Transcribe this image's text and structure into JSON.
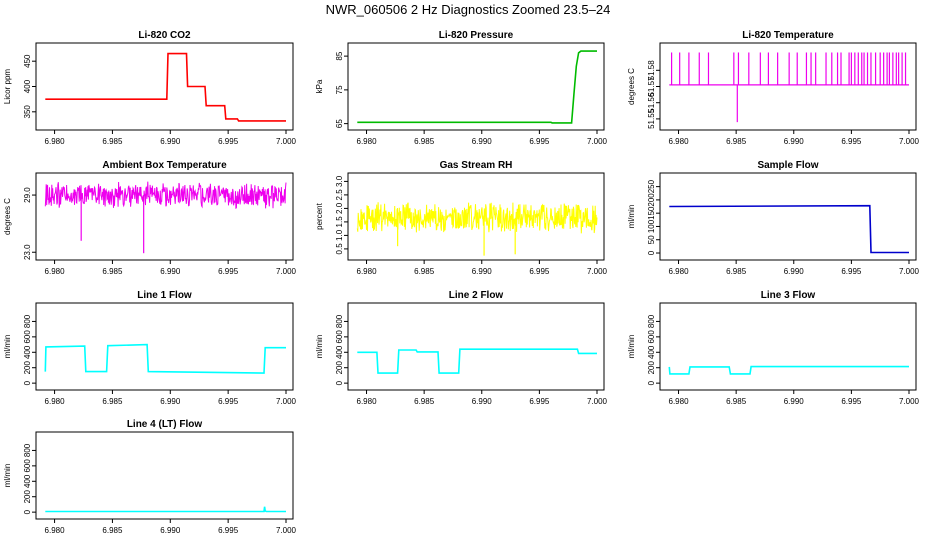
{
  "title": "NWR_060506  2 Hz Diagnostics Zoomed 23.5–24",
  "chart_data": [
    {
      "type": "line",
      "title": "Li-820 CO2",
      "ylabel": "Licor ppm",
      "color": "#ff0000",
      "xlim": [
        6.979,
        7.0
      ],
      "ylim": [
        320,
        480
      ],
      "xticks": [
        "6.980",
        "6.985",
        "6.990",
        "6.995",
        "7.000"
      ],
      "yticks": [
        "350",
        "400",
        "450"
      ],
      "x": [
        6.9792,
        6.9897,
        6.9898,
        6.9914,
        6.9915,
        6.993,
        6.9931,
        6.9947,
        6.9948,
        6.9958,
        6.9959,
        7.0
      ],
      "y": [
        375,
        375,
        465,
        465,
        400,
        400,
        362,
        362,
        336,
        336,
        332,
        332
      ]
    },
    {
      "type": "line",
      "title": "Li-820 Pressure",
      "ylabel": "kPa",
      "color": "#00bb00",
      "xlim": [
        6.979,
        7.0
      ],
      "ylim": [
        64,
        88
      ],
      "xticks": [
        "6.980",
        "6.985",
        "6.990",
        "6.995",
        "7.000"
      ],
      "yticks": [
        "65",
        "75",
        "85"
      ],
      "x": [
        6.9792,
        6.996,
        6.9961,
        6.9978,
        6.998,
        6.9982,
        6.9984,
        6.9986,
        7.0
      ],
      "y": [
        65.4,
        65.4,
        65.2,
        65.2,
        74,
        82,
        86,
        86.5,
        86.5
      ]
    },
    {
      "type": "spikes",
      "title": "Li-820 Temperature",
      "ylabel": "degrees C",
      "color": "#ee00ee",
      "xlim": [
        6.979,
        7.0
      ],
      "ylim": [
        51.545,
        51.595
      ],
      "xticks": [
        "6.980",
        "6.985",
        "6.990",
        "6.995",
        "7.000"
      ],
      "yticks": [
        "51.55",
        "51.56",
        "51.57",
        "51.58"
      ],
      "base": 51.571,
      "high": 51.591,
      "low": 51.548,
      "low_x": 6.9851,
      "spike_x": [
        6.9794,
        6.9801,
        6.9809,
        6.9818,
        6.9826,
        6.9848,
        6.9852,
        6.9861,
        6.9871,
        6.9878,
        6.9886,
        6.9896,
        6.9903,
        6.9911,
        6.9915,
        6.9919,
        6.9928,
        6.9933,
        6.9938,
        6.9941,
        6.9948,
        6.995,
        6.9953,
        6.9956,
        6.9959,
        6.9961,
        6.9964,
        6.9967,
        6.9971,
        6.9975,
        6.9978,
        6.9981,
        6.9983,
        6.9986,
        6.9989,
        6.9991,
        6.9994,
        6.9997
      ]
    },
    {
      "type": "noise",
      "title": "Ambient Box Temperature",
      "ylabel": "degrees C",
      "color": "#ee00ee",
      "xlim": [
        6.979,
        7.0
      ],
      "ylim": [
        22.5,
        31.0
      ],
      "xticks": [
        "6.980",
        "6.985",
        "6.990",
        "6.995",
        "7.000"
      ],
      "yticks": [
        "23.0",
        "29.0"
      ],
      "mean": 29.0,
      "amp": 1.1,
      "dip_x": [
        6.9823,
        6.9877
      ],
      "dip_y": [
        24.2,
        22.9
      ]
    },
    {
      "type": "noise",
      "title": "Gas Stream RH",
      "ylabel": "percent",
      "color": "#ffff00",
      "xlim": [
        6.979,
        7.0
      ],
      "ylim": [
        0.2,
        3.2
      ],
      "xticks": [
        "6.980",
        "6.985",
        "6.990",
        "6.995",
        "7.000"
      ],
      "yticks": [
        "0.5",
        "1.0",
        "1.5",
        "2.0",
        "2.5",
        "3.0"
      ],
      "mean": 1.65,
      "amp": 0.45,
      "dip_x": [
        6.9827,
        6.9902,
        6.9929
      ],
      "dip_y": [
        0.6,
        0.25,
        0.3
      ]
    },
    {
      "type": "line",
      "title": "Sample Flow",
      "ylabel": "ml/min",
      "color": "#0000cc",
      "xlim": [
        6.979,
        7.0
      ],
      "ylim": [
        -15,
        290
      ],
      "xticks": [
        "6.980",
        "6.985",
        "6.990",
        "6.995",
        "7.000"
      ],
      "yticks": [
        "0",
        "50",
        "100",
        "150",
        "200",
        "250"
      ],
      "x": [
        6.9792,
        6.9966,
        6.9967,
        7.0
      ],
      "y": [
        175,
        178,
        2,
        2
      ]
    },
    {
      "type": "line",
      "title": "Line 1 Flow",
      "ylabel": "ml/min",
      "color": "#00ffff",
      "xlim": [
        6.979,
        7.0
      ],
      "ylim": [
        -50,
        1000
      ],
      "xticks": [
        "6.980",
        "6.985",
        "6.990",
        "6.995",
        "7.000"
      ],
      "yticks": [
        "0",
        "200",
        "400",
        "600",
        "800"
      ],
      "x": [
        6.9792,
        6.97925,
        6.9826,
        6.9827,
        6.9845,
        6.9846,
        6.988,
        6.9881,
        6.9981,
        6.9982,
        7.0
      ],
      "y": [
        150,
        470,
        480,
        150,
        150,
        485,
        500,
        150,
        130,
        460,
        460
      ]
    },
    {
      "type": "line",
      "title": "Line 2 Flow",
      "ylabel": "ml/min",
      "color": "#00ffff",
      "xlim": [
        6.979,
        7.0
      ],
      "ylim": [
        -50,
        1000
      ],
      "xticks": [
        "6.980",
        "6.985",
        "6.990",
        "6.995",
        "7.000"
      ],
      "yticks": [
        "0",
        "200",
        "400",
        "600",
        "800"
      ],
      "x": [
        6.9792,
        6.9809,
        6.981,
        6.9827,
        6.9828,
        6.9843,
        6.9844,
        6.9862,
        6.9863,
        6.988,
        6.9881,
        6.9983,
        6.9984,
        7.0
      ],
      "y": [
        400,
        400,
        130,
        130,
        430,
        430,
        405,
        405,
        130,
        130,
        440,
        440,
        385,
        385
      ]
    },
    {
      "type": "line",
      "title": "Line 3 Flow",
      "ylabel": "ml/min",
      "color": "#00ffff",
      "xlim": [
        6.979,
        7.0
      ],
      "ylim": [
        -50,
        1000
      ],
      "xticks": [
        "6.980",
        "6.985",
        "6.990",
        "6.995",
        "7.000"
      ],
      "yticks": [
        "0",
        "200",
        "400",
        "600",
        "800"
      ],
      "x": [
        6.9792,
        6.97925,
        6.9809,
        6.981,
        6.9844,
        6.9845,
        6.9862,
        6.9863,
        7.0
      ],
      "y": [
        210,
        120,
        120,
        210,
        210,
        120,
        120,
        215,
        215
      ]
    },
    {
      "type": "line",
      "title": "Line 4 (LT) Flow",
      "ylabel": "ml/min",
      "color": "#00ffff",
      "xlim": [
        6.979,
        7.0
      ],
      "ylim": [
        -50,
        1000
      ],
      "xticks": [
        "6.980",
        "6.985",
        "6.990",
        "6.995",
        "7.000"
      ],
      "yticks": [
        "0",
        "200",
        "400",
        "600",
        "800"
      ],
      "x": [
        6.9792,
        6.9981,
        6.99815,
        6.9982,
        6.9983,
        7.0
      ],
      "y": [
        8,
        8,
        70,
        15,
        8,
        8
      ]
    }
  ]
}
